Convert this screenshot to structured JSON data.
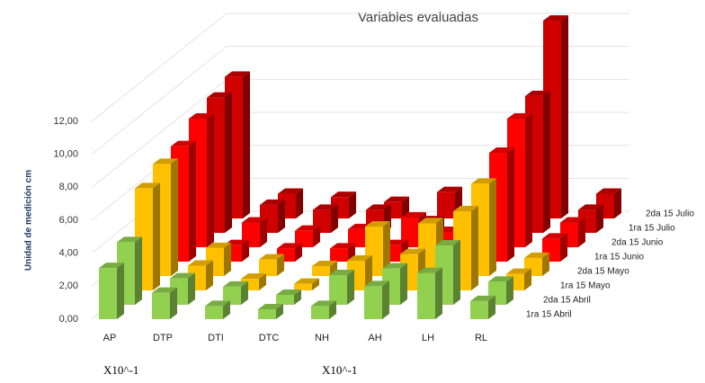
{
  "chart_data": {
    "type": "bar3d",
    "title": "Variables evaluadas",
    "y_label": "Unidad de medición cm",
    "categories": [
      "AP",
      "DTP",
      "DTI",
      "DTC",
      "NH",
      "AH",
      "LH",
      "RL"
    ],
    "series": [
      {
        "name": "1ra 15 Abril",
        "color": "#92d050",
        "values": [
          3.1,
          1.6,
          0.8,
          0.6,
          0.8,
          2.0,
          2.8,
          1.1
        ]
      },
      {
        "name": "2da 15 Abril",
        "color": "#92d050",
        "values": [
          3.8,
          1.6,
          1.1,
          0.6,
          1.8,
          2.2,
          3.6,
          1.4
        ]
      },
      {
        "name": "1ra 15 Mayo",
        "color": "#ffc000",
        "values": [
          6.2,
          1.5,
          0.7,
          0.4,
          1.8,
          2.2,
          4.8,
          1.0
        ]
      },
      {
        "name": "2da 15 Mayo",
        "color": "#ffc000",
        "values": [
          6.8,
          1.7,
          1.0,
          0.6,
          3.0,
          3.2,
          5.6,
          1.1
        ]
      },
      {
        "name": "1ra 15 Junio",
        "color": "#ff0000",
        "values": [
          7.0,
          1.0,
          0.8,
          0.8,
          1.0,
          1.8,
          6.6,
          1.4
        ]
      },
      {
        "name": "2da 15 Junio",
        "color": "#ff0000",
        "values": [
          7.8,
          1.5,
          1.0,
          1.1,
          1.8,
          1.8,
          7.8,
          1.5
        ]
      },
      {
        "name": "1ra 15 Julio",
        "color": "#d00000",
        "values": [
          8.2,
          1.7,
          1.4,
          1.4,
          0.7,
          1.4,
          8.3,
          1.4
        ]
      },
      {
        "name": "2da 15 Julio",
        "color": "#d00000",
        "values": [
          8.6,
          1.5,
          1.3,
          1.0,
          1.6,
          1.7,
          12.0,
          1.5
        ]
      }
    ],
    "ylim": [
      0,
      12
    ],
    "yticks": [
      {
        "value": 0,
        "label": "0,00"
      },
      {
        "value": 2,
        "label": "2,00"
      },
      {
        "value": 4,
        "label": "4,00"
      },
      {
        "value": 6,
        "label": "6,00"
      },
      {
        "value": 8,
        "label": "8,00"
      },
      {
        "value": 10,
        "label": "10,00"
      },
      {
        "value": 12,
        "label": "12,00"
      }
    ],
    "grid": true,
    "annotations": [
      "X10^-1",
      "X10^-1"
    ]
  }
}
